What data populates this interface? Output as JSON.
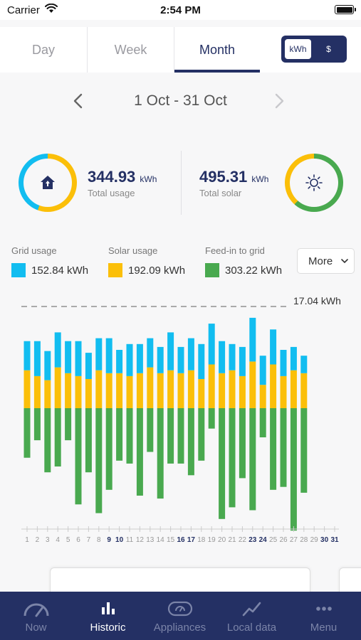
{
  "status_bar": {
    "carrier": "Carrier",
    "time": "2:54 PM"
  },
  "tabs": [
    {
      "label": "Day",
      "active": false
    },
    {
      "label": "Week",
      "active": false
    },
    {
      "label": "Month",
      "active": true
    }
  ],
  "unit_toggle": {
    "kwh": "kWh",
    "dollar": "$",
    "selected": "kWh"
  },
  "period": {
    "label": "1 Oct - 31 Oct"
  },
  "summary": {
    "usage": {
      "value": "344.93",
      "unit": "kWh",
      "label": "Total usage",
      "icon": "home-icon"
    },
    "solar": {
      "value": "495.31",
      "unit": "kWh",
      "label": "Total solar",
      "icon": "sun-icon"
    }
  },
  "legend": {
    "grid": {
      "title": "Grid usage",
      "value": "152.84 kWh"
    },
    "solar": {
      "title": "Solar usage",
      "value": "192.09 kWh"
    },
    "feedin": {
      "title": "Feed-in to grid",
      "value": "303.22 kWh"
    },
    "more_label": "More"
  },
  "colors": {
    "grid": "#12bdf0",
    "solar": "#fbbf09",
    "feedin": "#49a94f",
    "navy": "#243064"
  },
  "chart_data": {
    "type": "bar",
    "max_label": "17.04 kWh",
    "bold_days": [
      9,
      10,
      16,
      17,
      23,
      24,
      30,
      31
    ],
    "days": [
      {
        "day": 1,
        "grid": 5.0,
        "solar": 6.5,
        "feedin": 8.5
      },
      {
        "day": 2,
        "grid": 6.0,
        "solar": 5.5,
        "feedin": 5.5
      },
      {
        "day": 3,
        "grid": 5.0,
        "solar": 4.8,
        "feedin": 11.0
      },
      {
        "day": 4,
        "grid": 6.0,
        "solar": 7.0,
        "feedin": 10.0
      },
      {
        "day": 5,
        "grid": 5.5,
        "solar": 6.0,
        "feedin": 5.5
      },
      {
        "day": 6,
        "grid": 6.0,
        "solar": 5.5,
        "feedin": 16.5
      },
      {
        "day": 7,
        "grid": 4.5,
        "solar": 5.0,
        "feedin": 11.0
      },
      {
        "day": 8,
        "grid": 5.5,
        "solar": 6.5,
        "feedin": 18.0
      },
      {
        "day": 9,
        "grid": 6.0,
        "solar": 6.0,
        "feedin": 14.0
      },
      {
        "day": 10,
        "grid": 4.0,
        "solar": 6.0,
        "feedin": 9.0
      },
      {
        "day": 11,
        "grid": 5.5,
        "solar": 5.5,
        "feedin": 9.5
      },
      {
        "day": 12,
        "grid": 5.0,
        "solar": 6.0,
        "feedin": 15.0
      },
      {
        "day": 13,
        "grid": 5.0,
        "solar": 7.0,
        "feedin": 7.5
      },
      {
        "day": 14,
        "grid": 4.5,
        "solar": 6.0,
        "feedin": 15.5
      },
      {
        "day": 15,
        "grid": 6.5,
        "solar": 6.5,
        "feedin": 9.5
      },
      {
        "day": 16,
        "grid": 4.5,
        "solar": 6.0,
        "feedin": 9.5
      },
      {
        "day": 17,
        "grid": 5.5,
        "solar": 6.5,
        "feedin": 11.5
      },
      {
        "day": 18,
        "grid": 6.0,
        "solar": 5.0,
        "feedin": 9.0
      },
      {
        "day": 19,
        "grid": 7.0,
        "solar": 7.5,
        "feedin": 3.5
      },
      {
        "day": 20,
        "grid": 5.5,
        "solar": 6.0,
        "feedin": 19.0
      },
      {
        "day": 21,
        "grid": 4.5,
        "solar": 6.5,
        "feedin": 17.0
      },
      {
        "day": 22,
        "grid": 5.0,
        "solar": 5.5,
        "feedin": 12.0
      },
      {
        "day": 23,
        "grid": 7.5,
        "solar": 8.0,
        "feedin": 17.5
      },
      {
        "day": 24,
        "grid": 5.0,
        "solar": 4.0,
        "feedin": 5.0
      },
      {
        "day": 25,
        "grid": 6.0,
        "solar": 7.5,
        "feedin": 14.0
      },
      {
        "day": 26,
        "grid": 4.5,
        "solar": 5.5,
        "feedin": 13.5
      },
      {
        "day": 27,
        "grid": 4.0,
        "solar": 6.5,
        "feedin": 21.0
      },
      {
        "day": 28,
        "grid": 3.0,
        "solar": 6.0,
        "feedin": 14.5
      }
    ],
    "x_ticks": [
      1,
      2,
      3,
      4,
      5,
      6,
      7,
      8,
      9,
      10,
      11,
      12,
      13,
      14,
      15,
      16,
      17,
      18,
      19,
      20,
      21,
      22,
      23,
      24,
      25,
      26,
      27,
      28,
      29,
      30,
      31
    ]
  },
  "bottom_nav": [
    {
      "label": "Now",
      "icon": "gauge-icon",
      "active": false
    },
    {
      "label": "Historic",
      "icon": "bar-chart-icon",
      "active": true
    },
    {
      "label": "Appliances",
      "icon": "appliance-icon",
      "active": false
    },
    {
      "label": "Local data",
      "icon": "trend-line-icon",
      "active": false
    },
    {
      "label": "Menu",
      "icon": "dots-icon",
      "active": false
    }
  ]
}
